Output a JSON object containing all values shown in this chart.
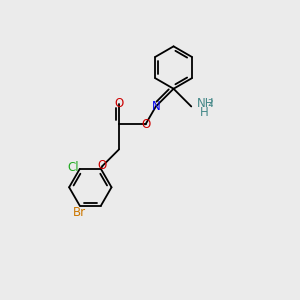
{
  "background_color": "#ebebeb",
  "bond_color": "#000000",
  "figsize": [
    3.0,
    3.0
  ],
  "dpi": 100,
  "atoms": {
    "Br": {
      "color": "#cc7700",
      "fontsize": 8.5
    },
    "Cl": {
      "color": "#22aa22",
      "fontsize": 8.5
    },
    "O": {
      "color": "#cc0000",
      "fontsize": 8.5
    },
    "N": {
      "color": "#0000ee",
      "fontsize": 8.5
    },
    "NH": {
      "color": "#448888",
      "fontsize": 8.5
    },
    "H": {
      "color": "#448888",
      "fontsize": 8.5
    }
  },
  "lw": 1.3,
  "ring_r": 0.72,
  "inner_off": 0.1,
  "shrink": 0.13
}
